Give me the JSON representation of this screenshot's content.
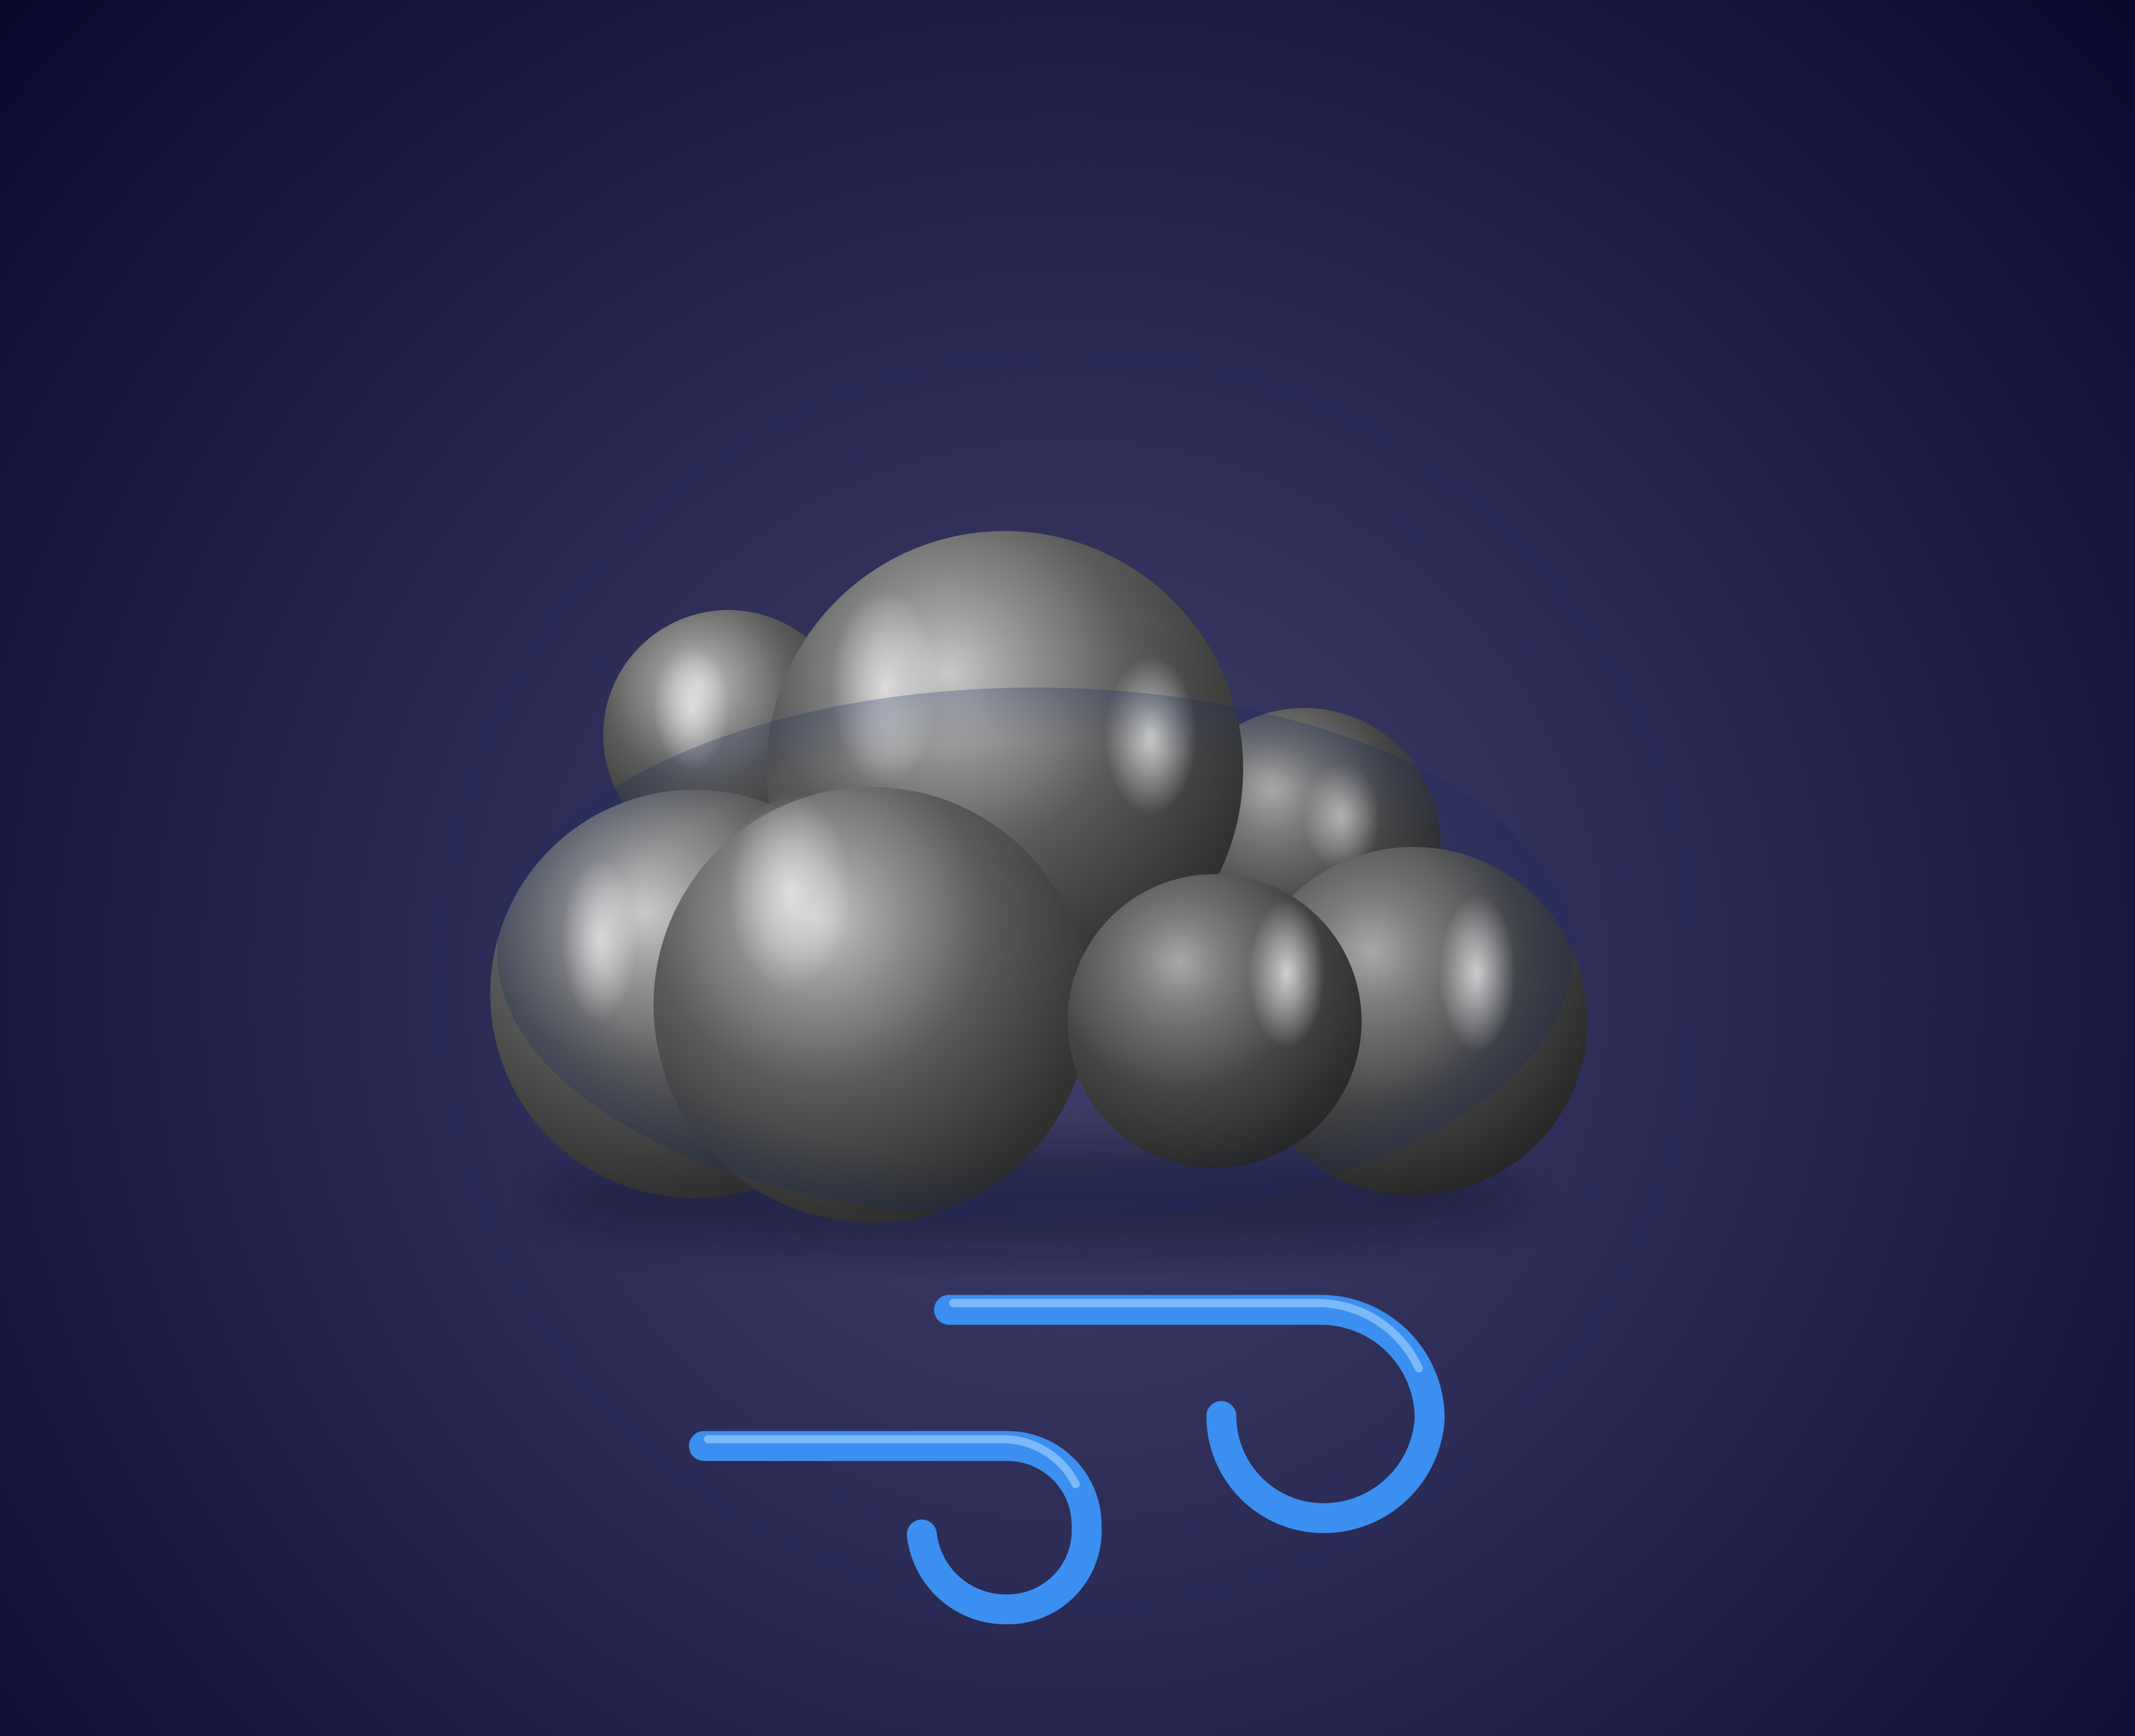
{
  "scene": {
    "subject": "weather-icon-windy-cloud",
    "icons": [
      "cloud-icon",
      "wind-icon"
    ],
    "colors": {
      "background_center": "#3f3f69",
      "background_mid": "#2a2a55",
      "background_edge": "#0b0930",
      "cloud_highlight": "#c9c9c9",
      "cloud_mid": "#707070",
      "cloud_shadow": "#262626",
      "wind_highlight": "#8cc4ff",
      "wind_mid": "#3b8ff0",
      "wind_shadow": "#1560c4"
    }
  }
}
